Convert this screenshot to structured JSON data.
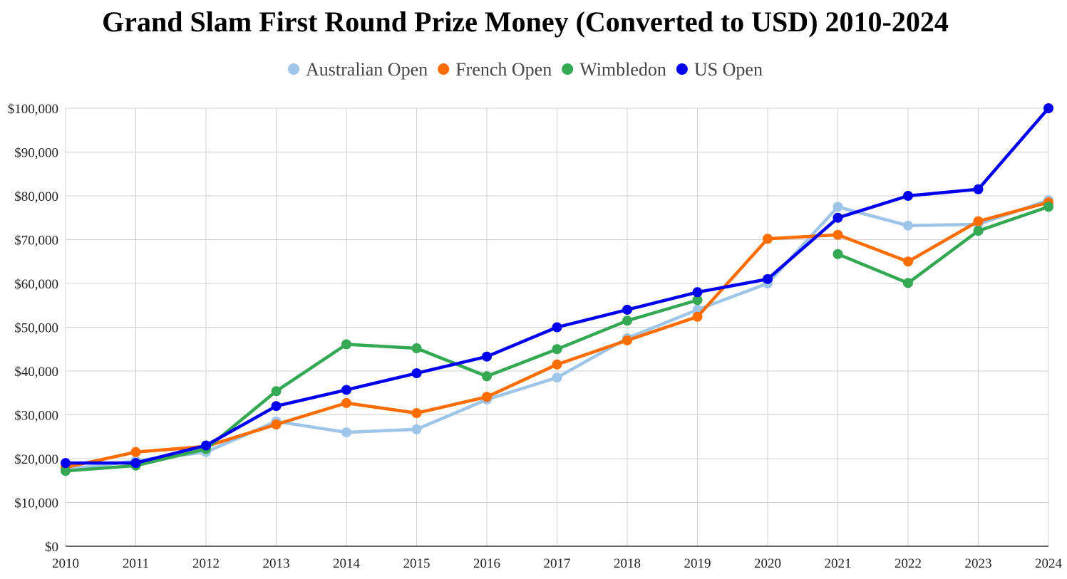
{
  "chart_data": {
    "type": "line",
    "title": "Grand Slam First Round Prize Money (Converted to USD) 2010-2024",
    "xlabel": "",
    "ylabel": "",
    "x": [
      2010,
      2011,
      2012,
      2013,
      2014,
      2015,
      2016,
      2017,
      2018,
      2019,
      2020,
      2021,
      2022,
      2023,
      2024
    ],
    "x_tick_labels": [
      "2010",
      "2011",
      "2012",
      "2013",
      "2014",
      "2015",
      "2016",
      "2017",
      "2018",
      "2019",
      "2020",
      "2021",
      "2022",
      "2023",
      "2024"
    ],
    "ylim": [
      0,
      100000
    ],
    "y_ticks": [
      0,
      10000,
      20000,
      30000,
      40000,
      50000,
      60000,
      70000,
      80000,
      90000,
      100000
    ],
    "y_tick_labels": [
      "$0",
      "$10,000",
      "$20,000",
      "$30,000",
      "$40,000",
      "$50,000",
      "$60,000",
      "$70,000",
      "$80,000",
      "$90,000",
      "$100,000"
    ],
    "grid": true,
    "legend_position": "top-center",
    "series": [
      {
        "name": "Australian Open",
        "color": "#9fc5e8",
        "values": [
          17500,
          19500,
          21500,
          28500,
          26000,
          26700,
          33500,
          38500,
          47500,
          54000,
          60000,
          77500,
          73200,
          73500,
          79000
        ]
      },
      {
        "name": "French Open",
        "color": "#ff6d01",
        "values": [
          18000,
          21500,
          22800,
          27800,
          32700,
          30400,
          34100,
          41500,
          47000,
          52400,
          70200,
          71100,
          65000,
          74200,
          78500
        ]
      },
      {
        "name": "Wimbledon",
        "color": "#34a853",
        "values": [
          17200,
          18400,
          22200,
          35400,
          46100,
          45200,
          38800,
          45000,
          51500,
          56200,
          null,
          66700,
          60100,
          72000,
          77500
        ]
      },
      {
        "name": "US Open",
        "color": "#0000ee",
        "values": [
          19000,
          19000,
          23000,
          32000,
          35700,
          39500,
          43300,
          50000,
          54000,
          58000,
          61000,
          75000,
          80000,
          81500,
          100000
        ]
      }
    ]
  }
}
